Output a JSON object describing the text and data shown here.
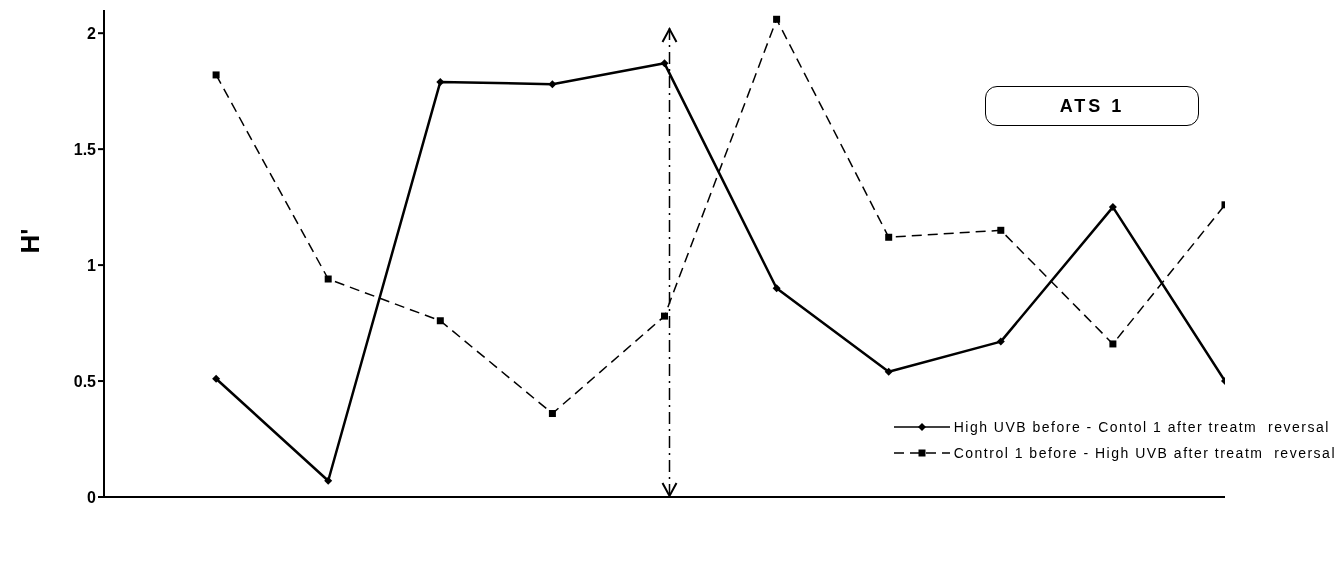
{
  "chart_data": {
    "type": "line",
    "ylabel": "H'",
    "annotations": [
      "ATS 1"
    ],
    "categories": [
      null,
      null,
      null,
      null,
      null,
      null,
      null,
      null,
      null,
      null
    ],
    "ylim": [
      0,
      2.1
    ],
    "yticks": [
      0,
      0.5,
      1,
      1.5,
      2
    ],
    "tick_labels": "y",
    "legend": "bottom right",
    "series": [
      {
        "name": "High UVB before - Contol 1 after treatm  reversal",
        "color": "#000000",
        "marker": "diamond",
        "line_style": "solid",
        "values": [
          0.51,
          0.07,
          1.79,
          1.78,
          1.87,
          0.9,
          0.54,
          0.67,
          1.25,
          0.5
        ]
      },
      {
        "name": "Control 1 before - High UVB after treatm  reversal",
        "color": "#000000",
        "marker": "square",
        "line_style": "dashed",
        "values": [
          1.82,
          0.94,
          0.76,
          0.36,
          0.78,
          2.06,
          1.12,
          1.15,
          0.66,
          1.26
        ]
      }
    ]
  }
}
